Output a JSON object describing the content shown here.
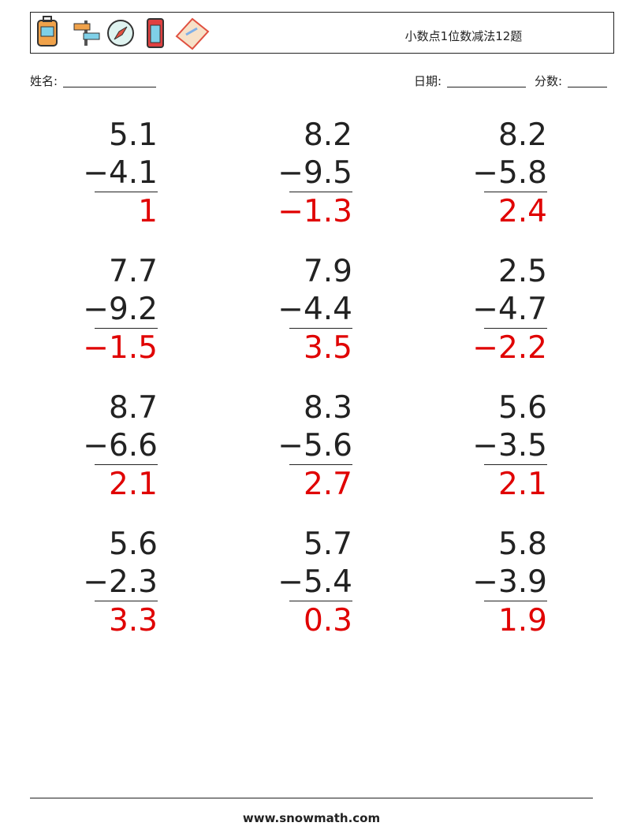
{
  "header": {
    "title": "小数点1位数减法12题"
  },
  "fields": {
    "name": "姓名:",
    "date": "日期:",
    "score": "分数:"
  },
  "problems": [
    {
      "top": "5.1",
      "bottom": "−4.1",
      "answer": "1"
    },
    {
      "top": "8.2",
      "bottom": "−9.5",
      "answer": "−1.3"
    },
    {
      "top": "8.2",
      "bottom": "−5.8",
      "answer": "2.4"
    },
    {
      "top": "7.7",
      "bottom": "−9.2",
      "answer": "−1.5"
    },
    {
      "top": "7.9",
      "bottom": "−4.4",
      "answer": "3.5"
    },
    {
      "top": "2.5",
      "bottom": "−4.7",
      "answer": "−2.2"
    },
    {
      "top": "8.7",
      "bottom": "−6.6",
      "answer": "2.1"
    },
    {
      "top": "8.3",
      "bottom": "−5.6",
      "answer": "2.7"
    },
    {
      "top": "5.6",
      "bottom": "−3.5",
      "answer": "2.1"
    },
    {
      "top": "5.6",
      "bottom": "−2.3",
      "answer": "3.3"
    },
    {
      "top": "5.7",
      "bottom": "−5.4",
      "answer": "0.3"
    },
    {
      "top": "5.8",
      "bottom": "−3.9",
      "answer": "1.9"
    }
  ],
  "footer": {
    "site": "www.snowmath.com"
  }
}
